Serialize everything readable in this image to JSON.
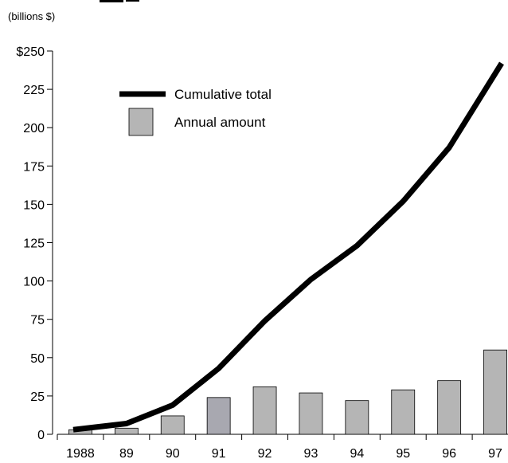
{
  "chart_data": {
    "type": "bar",
    "unit_label": "(billions $)",
    "categories": [
      "1988",
      "89",
      "90",
      "91",
      "92",
      "93",
      "94",
      "95",
      "96",
      "97"
    ],
    "series": [
      {
        "name": "Annual amount",
        "type": "bar",
        "values": [
          3,
          4,
          12,
          24,
          31,
          27,
          22,
          29,
          35,
          55
        ],
        "color": "#b5b5b5"
      },
      {
        "name": "Cumulative total",
        "type": "line",
        "values": [
          3,
          7,
          19,
          43,
          74,
          101,
          123,
          152,
          187,
          242
        ],
        "color": "#000000"
      }
    ],
    "highlighted_bar": {
      "category": "91",
      "color": "#a8a8b0"
    },
    "y_ticks": [
      "$250",
      "225",
      "200",
      "175",
      "150",
      "125",
      "100",
      "75",
      "50",
      "25",
      "0"
    ],
    "ylim": [
      0,
      250
    ],
    "grid": false,
    "legend_position": "top-left"
  }
}
